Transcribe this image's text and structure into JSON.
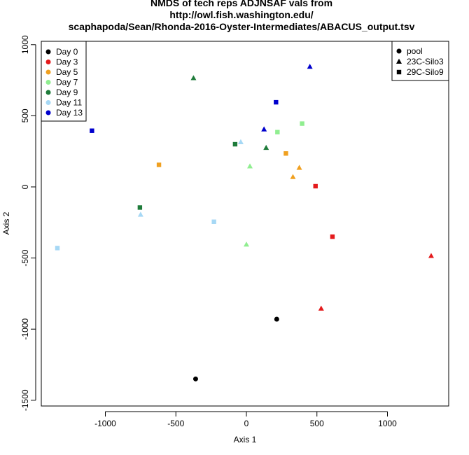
{
  "chart_data": {
    "type": "scatter",
    "title_lines": [
      "NMDS of tech reps ADJNSAF vals from",
      "http://owl.fish.washington.edu/",
      "scaphapoda/Sean/Rhonda-2016-Oyster-Intermediates/ABACUS_output.tsv"
    ],
    "xlabel": "Axis 1",
    "ylabel": "Axis 2",
    "xlim": [
      -1400,
      1400
    ],
    "ylim": [
      -1600,
      1000
    ],
    "x_ticks": [
      -1000,
      -500,
      0,
      500,
      1000
    ],
    "y_ticks": [
      -1500,
      -1000,
      -500,
      0,
      500,
      1000
    ],
    "grid": false,
    "day_legend": {
      "placement": "top-left",
      "entries": [
        {
          "label": "Day 0",
          "color": "#000000"
        },
        {
          "label": "Day 3",
          "color": "#e41a1c"
        },
        {
          "label": "Day 5",
          "color": "#f0a020"
        },
        {
          "label": "Day 7",
          "color": "#90ee90"
        },
        {
          "label": "Day 9",
          "color": "#1e7b3a"
        },
        {
          "label": "Day 11",
          "color": "#a6d8f5"
        },
        {
          "label": "Day 13",
          "color": "#0000cd"
        }
      ]
    },
    "shape_legend": {
      "placement": "top-right",
      "entries": [
        {
          "label": "pool",
          "shape": "circle"
        },
        {
          "label": "23C-Silo3",
          "shape": "triangle"
        },
        {
          "label": "29C-Silo9",
          "shape": "square"
        }
      ]
    },
    "points": [
      {
        "x": -360,
        "y": -1350,
        "day": "Day 0",
        "group": "pool"
      },
      {
        "x": 215,
        "y": -930,
        "day": "Day 0",
        "group": "pool"
      },
      {
        "x": 1310,
        "y": -485,
        "day": "Day 3",
        "group": "23C-Silo3"
      },
      {
        "x": 530,
        "y": -855,
        "day": "Day 3",
        "group": "23C-Silo3"
      },
      {
        "x": 610,
        "y": -350,
        "day": "Day 3",
        "group": "29C-Silo9"
      },
      {
        "x": 490,
        "y": 5,
        "day": "Day 3",
        "group": "29C-Silo9"
      },
      {
        "x": 375,
        "y": 135,
        "day": "Day 5",
        "group": "23C-Silo3"
      },
      {
        "x": 330,
        "y": 70,
        "day": "Day 5",
        "group": "23C-Silo3"
      },
      {
        "x": 280,
        "y": 235,
        "day": "Day 5",
        "group": "29C-Silo9"
      },
      {
        "x": -620,
        "y": 155,
        "day": "Day 5",
        "group": "29C-Silo9"
      },
      {
        "x": 25,
        "y": 145,
        "day": "Day 7",
        "group": "23C-Silo3"
      },
      {
        "x": 0,
        "y": -405,
        "day": "Day 7",
        "group": "23C-Silo3"
      },
      {
        "x": 395,
        "y": 445,
        "day": "Day 7",
        "group": "29C-Silo9"
      },
      {
        "x": 220,
        "y": 385,
        "day": "Day 7",
        "group": "29C-Silo9"
      },
      {
        "x": -375,
        "y": 765,
        "day": "Day 9",
        "group": "23C-Silo3"
      },
      {
        "x": 140,
        "y": 275,
        "day": "Day 9",
        "group": "23C-Silo3"
      },
      {
        "x": -80,
        "y": 300,
        "day": "Day 9",
        "group": "29C-Silo9"
      },
      {
        "x": -755,
        "y": -145,
        "day": "Day 9",
        "group": "29C-Silo9"
      },
      {
        "x": -40,
        "y": 315,
        "day": "Day 11",
        "group": "23C-Silo3"
      },
      {
        "x": -750,
        "y": -195,
        "day": "Day 11",
        "group": "23C-Silo3"
      },
      {
        "x": -230,
        "y": -245,
        "day": "Day 11",
        "group": "29C-Silo9"
      },
      {
        "x": -1340,
        "y": -430,
        "day": "Day 11",
        "group": "29C-Silo9"
      },
      {
        "x": 450,
        "y": 845,
        "day": "Day 13",
        "group": "23C-Silo3"
      },
      {
        "x": 125,
        "y": 405,
        "day": "Day 13",
        "group": "23C-Silo3"
      },
      {
        "x": 210,
        "y": 595,
        "day": "Day 13",
        "group": "29C-Silo9"
      },
      {
        "x": -1095,
        "y": 395,
        "day": "Day 13",
        "group": "29C-Silo9"
      }
    ]
  }
}
